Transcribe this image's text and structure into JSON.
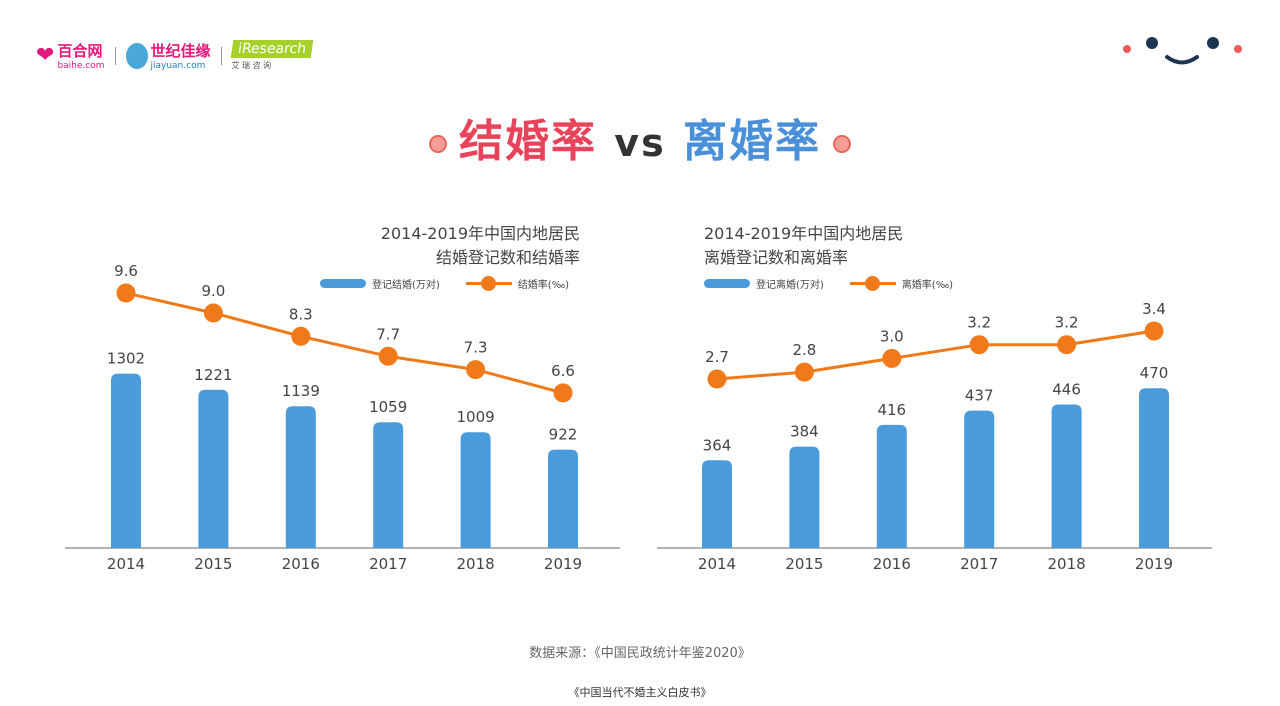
{
  "header": {
    "logos": [
      {
        "name": "百合网",
        "sub": "baihe.com"
      },
      {
        "name": "世纪佳缘",
        "sub": "jiayuan.com"
      },
      {
        "name": "iResearch",
        "sub": "艾 瑞 咨 询"
      }
    ]
  },
  "title": {
    "left": "结婚率",
    "vs": "vs",
    "right": "离婚率",
    "colors": {
      "left": "#e8435a",
      "vs": "#333333",
      "right": "#4a90d9"
    }
  },
  "chart_data": [
    {
      "type": "bar+line",
      "title": [
        "2014-2019年中国内地居民",
        "结婚登记数和结婚率"
      ],
      "categories": [
        "2014",
        "2015",
        "2016",
        "2017",
        "2018",
        "2019"
      ],
      "series": [
        {
          "name": "登记结婚(万对)",
          "type": "bar",
          "color": "#4a9bdc",
          "values": [
            1302,
            1221,
            1139,
            1059,
            1009,
            922
          ]
        },
        {
          "name": "结婚率(‰)",
          "type": "line",
          "color": "#f07a1a",
          "values": [
            "9.6",
            "9.0",
            "8.3",
            "7.7",
            "7.3",
            "6.6"
          ]
        }
      ]
    },
    {
      "type": "bar+line",
      "title": [
        "2014-2019年中国内地居民",
        "离婚登记数和离婚率"
      ],
      "categories": [
        "2014",
        "2015",
        "2016",
        "2017",
        "2018",
        "2019"
      ],
      "series": [
        {
          "name": "登记离婚(万对)",
          "type": "bar",
          "color": "#4a9bdc",
          "values": [
            364,
            384,
            416,
            437,
            446,
            470
          ]
        },
        {
          "name": "离婚率(‰)",
          "type": "line",
          "color": "#f07a1a",
          "values": [
            "2.7",
            "2.8",
            "3.0",
            "3.2",
            "3.2",
            "3.4"
          ]
        }
      ]
    }
  ],
  "footer": {
    "source": "数据来源：《中国民政统计年鉴2020》",
    "book": "《中国当代不婚主义白皮书》"
  }
}
